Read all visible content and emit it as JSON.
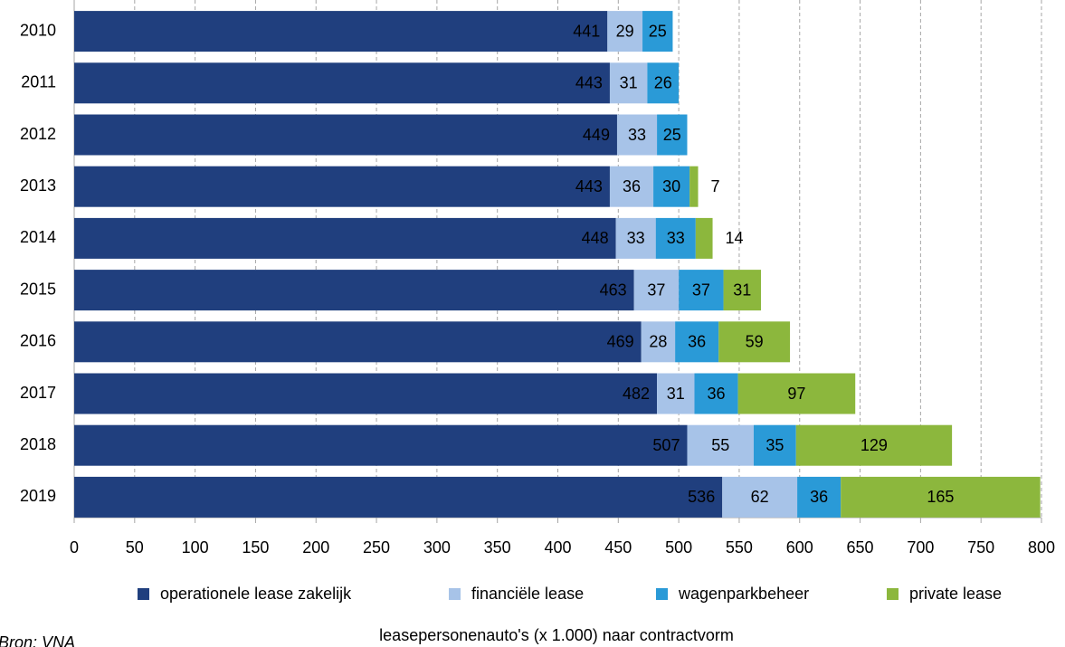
{
  "chart_data": {
    "type": "stacked-bar-horizontal",
    "title": "leasepersonenauto's (x 1.000) naar contractvorm",
    "source": "Bron: VNA",
    "categories": [
      "2010",
      "2011",
      "2012",
      "2013",
      "2014",
      "2015",
      "2016",
      "2017",
      "2018",
      "2019"
    ],
    "series": [
      {
        "name": "operationele lease zakelijk",
        "color": "#203f7e",
        "values": [
          441,
          443,
          449,
          443,
          448,
          463,
          469,
          482,
          507,
          536
        ]
      },
      {
        "name": "financiële lease",
        "color": "#a7c3e8",
        "values": [
          29,
          31,
          33,
          36,
          33,
          37,
          28,
          31,
          55,
          62
        ]
      },
      {
        "name": "wagenparkbeheer",
        "color": "#2a9ad7",
        "values": [
          25,
          26,
          25,
          30,
          33,
          37,
          36,
          36,
          35,
          36
        ]
      },
      {
        "name": "private lease",
        "color": "#8cb73d",
        "values": [
          null,
          null,
          null,
          7,
          14,
          31,
          59,
          97,
          129,
          165
        ]
      }
    ],
    "xlim": [
      0,
      800
    ],
    "xticks": [
      0,
      50,
      100,
      150,
      200,
      250,
      300,
      350,
      400,
      450,
      500,
      550,
      600,
      650,
      700,
      750,
      800
    ],
    "grid": true,
    "legend": "bottom"
  }
}
